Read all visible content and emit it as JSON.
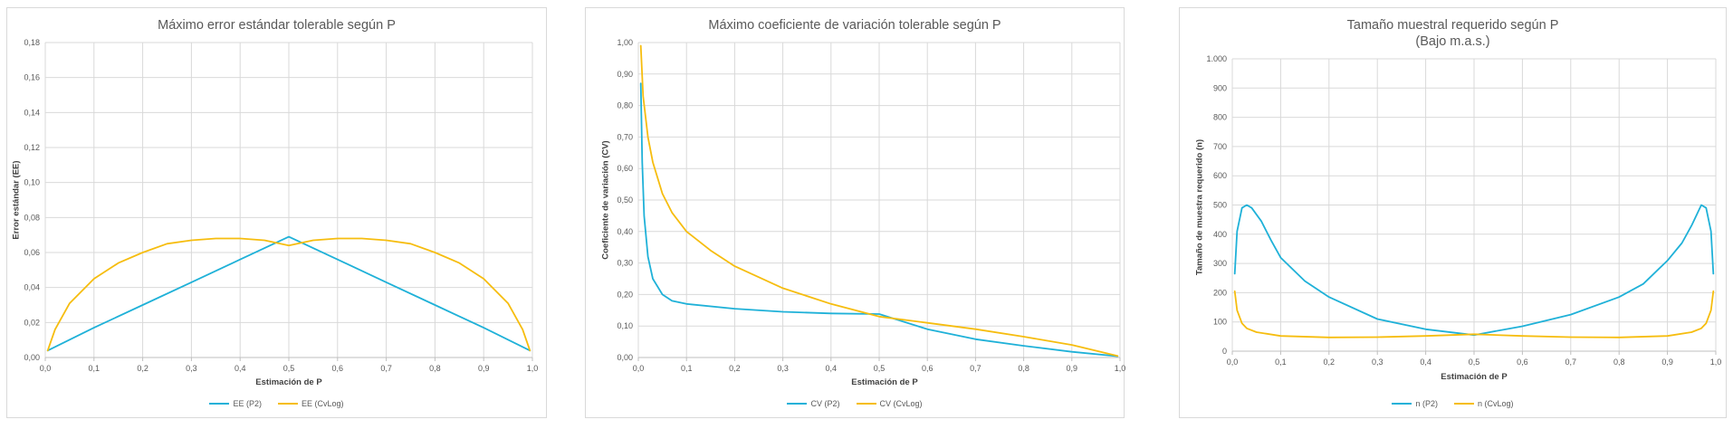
{
  "colors": {
    "blue": "#1fb1d8",
    "orange": "#f6bd0f",
    "grid": "#d9d9d9",
    "axis": "#bfbfbf"
  },
  "chart_data": [
    {
      "type": "line",
      "title": "Máximo error estándar tolerable según P",
      "xlabel": "Estimación de P",
      "ylabel": "Error estándar (EE)",
      "xlim": [
        0,
        1
      ],
      "ylim": [
        0,
        0.18
      ],
      "x_ticks": [
        0,
        0.1,
        0.2,
        0.3,
        0.4,
        0.5,
        0.6,
        0.7,
        0.8,
        0.9,
        1.0
      ],
      "x_tick_labels": [
        "0,0",
        "0,1",
        "0,2",
        "0,3",
        "0,4",
        "0,5",
        "0,6",
        "0,7",
        "0,8",
        "0,9",
        "1,0"
      ],
      "y_ticks": [
        0,
        0.02,
        0.04,
        0.06,
        0.08,
        0.1,
        0.12,
        0.14,
        0.16,
        0.18
      ],
      "y_tick_labels": [
        "0,00",
        "0,02",
        "0,04",
        "0,06",
        "0,08",
        "0,10",
        "0,12",
        "0,14",
        "0,16",
        "0,18"
      ],
      "legend_position": "bottom",
      "series": [
        {
          "name": "EE (P2)",
          "color": "#1fb1d8",
          "x": [
            0.005,
            0.1,
            0.2,
            0.3,
            0.4,
            0.5,
            0.6,
            0.7,
            0.8,
            0.9,
            0.995
          ],
          "y": [
            0.004,
            0.017,
            0.03,
            0.043,
            0.056,
            0.069,
            0.056,
            0.043,
            0.03,
            0.017,
            0.004
          ]
        },
        {
          "name": "EE (CvLog)",
          "color": "#f6bd0f",
          "x": [
            0.005,
            0.02,
            0.05,
            0.1,
            0.15,
            0.2,
            0.25,
            0.3,
            0.35,
            0.4,
            0.45,
            0.5,
            0.55,
            0.6,
            0.65,
            0.7,
            0.75,
            0.8,
            0.85,
            0.9,
            0.95,
            0.98,
            0.995
          ],
          "y": [
            0.004,
            0.016,
            0.031,
            0.045,
            0.054,
            0.06,
            0.065,
            0.067,
            0.068,
            0.068,
            0.067,
            0.064,
            0.067,
            0.068,
            0.068,
            0.067,
            0.065,
            0.06,
            0.054,
            0.045,
            0.031,
            0.016,
            0.004
          ]
        }
      ]
    },
    {
      "type": "line",
      "title": "Máximo coeficiente de variación tolerable según P",
      "xlabel": "Estimación de P",
      "ylabel": "Coeficiente de variación (CV)",
      "xlim": [
        0,
        1
      ],
      "ylim": [
        0,
        1
      ],
      "x_ticks": [
        0,
        0.1,
        0.2,
        0.3,
        0.4,
        0.5,
        0.6,
        0.7,
        0.8,
        0.9,
        1.0
      ],
      "x_tick_labels": [
        "0,0",
        "0,1",
        "0,2",
        "0,3",
        "0,4",
        "0,5",
        "0,6",
        "0,7",
        "0,8",
        "0,9",
        "1,0"
      ],
      "y_ticks": [
        0,
        0.1,
        0.2,
        0.3,
        0.4,
        0.5,
        0.6,
        0.7,
        0.8,
        0.9,
        1.0
      ],
      "y_tick_labels": [
        "0,00",
        "0,10",
        "0,20",
        "0,30",
        "0,40",
        "0,50",
        "0,60",
        "0,70",
        "0,80",
        "0,90",
        "1,00"
      ],
      "legend_position": "bottom",
      "series": [
        {
          "name": "CV (P2)",
          "color": "#1fb1d8",
          "x": [
            0.005,
            0.008,
            0.012,
            0.02,
            0.03,
            0.05,
            0.07,
            0.1,
            0.2,
            0.3,
            0.4,
            0.5,
            0.6,
            0.7,
            0.8,
            0.9,
            0.995
          ],
          "y": [
            0.87,
            0.62,
            0.45,
            0.32,
            0.25,
            0.2,
            0.18,
            0.17,
            0.155,
            0.145,
            0.14,
            0.138,
            0.09,
            0.058,
            0.037,
            0.018,
            0.004
          ]
        },
        {
          "name": "CV (CvLog)",
          "color": "#f6bd0f",
          "x": [
            0.005,
            0.01,
            0.02,
            0.03,
            0.05,
            0.07,
            0.1,
            0.15,
            0.2,
            0.3,
            0.4,
            0.5,
            0.6,
            0.7,
            0.8,
            0.9,
            0.995
          ],
          "y": [
            0.99,
            0.83,
            0.7,
            0.62,
            0.52,
            0.46,
            0.4,
            0.34,
            0.29,
            0.22,
            0.17,
            0.13,
            0.11,
            0.09,
            0.066,
            0.04,
            0.005
          ]
        }
      ]
    },
    {
      "type": "line",
      "title": "Tamaño muestral requerido según P",
      "subtitle": "(Bajo m.a.s.)",
      "xlabel": "Estimación de P",
      "ylabel": "Tamaño de muestra requerido (n)",
      "xlim": [
        0,
        1
      ],
      "ylim": [
        0,
        1000
      ],
      "x_ticks": [
        0,
        0.1,
        0.2,
        0.3,
        0.4,
        0.5,
        0.6,
        0.7,
        0.8,
        0.9,
        1.0
      ],
      "x_tick_labels": [
        "0,0",
        "0,1",
        "0,2",
        "0,3",
        "0,4",
        "0,5",
        "0,6",
        "0,7",
        "0,8",
        "0,9",
        "1,0"
      ],
      "y_ticks": [
        0,
        100,
        200,
        300,
        400,
        500,
        600,
        700,
        800,
        900,
        1000
      ],
      "y_tick_labels": [
        "0",
        "100",
        "200",
        "300",
        "400",
        "500",
        "600",
        "700",
        "800",
        "900",
        "1.000"
      ],
      "legend_position": "bottom",
      "series": [
        {
          "name": "n (P2)",
          "color": "#1fb1d8",
          "x": [
            0.005,
            0.01,
            0.02,
            0.03,
            0.04,
            0.06,
            0.08,
            0.1,
            0.15,
            0.2,
            0.3,
            0.4,
            0.5,
            0.6,
            0.7,
            0.8,
            0.85,
            0.9,
            0.93,
            0.95,
            0.97,
            0.98,
            0.99,
            0.995
          ],
          "y": [
            265,
            410,
            490,
            500,
            490,
            445,
            380,
            320,
            240,
            185,
            110,
            75,
            55,
            85,
            125,
            185,
            230,
            310,
            370,
            430,
            500,
            490,
            410,
            265
          ]
        },
        {
          "name": "n (CvLog)",
          "color": "#f6bd0f",
          "x": [
            0.005,
            0.01,
            0.02,
            0.03,
            0.05,
            0.1,
            0.2,
            0.3,
            0.4,
            0.5,
            0.6,
            0.7,
            0.8,
            0.9,
            0.95,
            0.97,
            0.98,
            0.99,
            0.995
          ],
          "y": [
            205,
            140,
            95,
            78,
            65,
            52,
            47,
            48,
            52,
            58,
            52,
            48,
            47,
            52,
            65,
            78,
            95,
            140,
            205
          ]
        }
      ]
    }
  ]
}
